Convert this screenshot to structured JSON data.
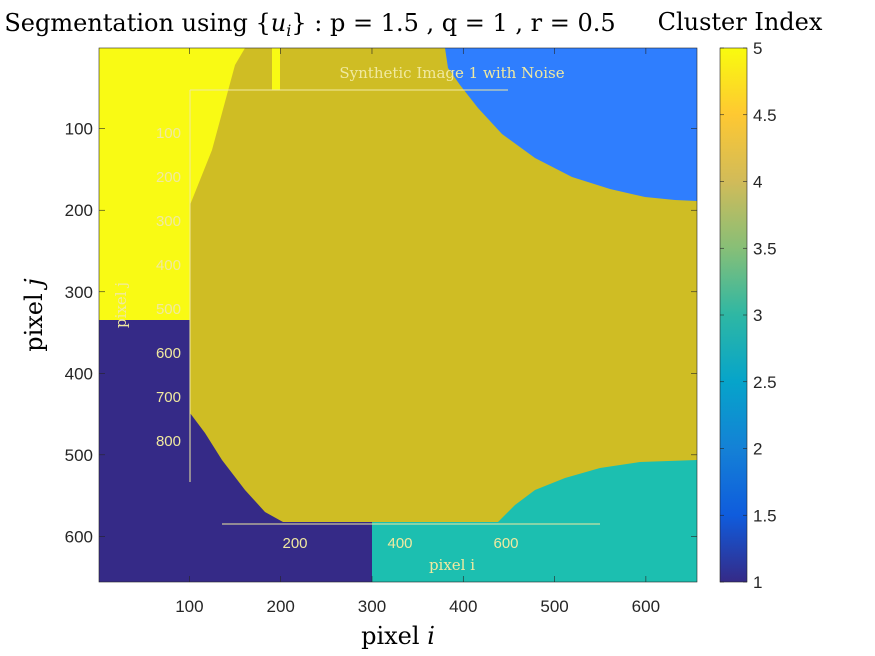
{
  "chart_data": {
    "type": "heatmap",
    "title": "Segmentation using {u_i} : p = 1.5 , q = 1 , r = 0.5",
    "title_parts": {
      "prefix": "Segmentation using {",
      "var": "u",
      "sub": "i",
      "suffix": "} : p = 1.5 , q = 1 , r = 0.5"
    },
    "xlabel": {
      "text": "pixel ",
      "var": "i"
    },
    "ylabel": {
      "text": "pixel ",
      "var": "j"
    },
    "xlim": [
      1,
      656
    ],
    "ylim": [
      1,
      656
    ],
    "y_reversed": true,
    "xticks": [
      100,
      200,
      300,
      400,
      500,
      600
    ],
    "yticks": [
      100,
      200,
      300,
      400,
      500,
      600
    ],
    "colorbar": {
      "label": "Cluster Index",
      "range": [
        1,
        5
      ],
      "ticks": [
        1,
        1.5,
        2,
        2.5,
        3,
        3.5,
        4,
        4.5,
        5
      ],
      "colormap": "parula"
    },
    "clusters": [
      {
        "index": 1,
        "color": "#352a87",
        "region": "bottom-left"
      },
      {
        "index": 2,
        "color": "#2f7efe",
        "region": "top-right"
      },
      {
        "index": 3,
        "color": "#1cbfb0",
        "region": "bottom-right"
      },
      {
        "index": 4,
        "color": "#cfbd24",
        "region": "center"
      },
      {
        "index": 5,
        "color": "#f9fa14",
        "region": "top-left"
      }
    ],
    "embedded_image_text": {
      "title": "Synthetic Image 1 with Noise",
      "xlabel": "pixel i",
      "ylabel": "pixel j",
      "xticks": [
        "200",
        "400",
        "600"
      ],
      "yticks": [
        "100",
        "200",
        "300",
        "400",
        "500",
        "600",
        "700",
        "800"
      ]
    }
  }
}
